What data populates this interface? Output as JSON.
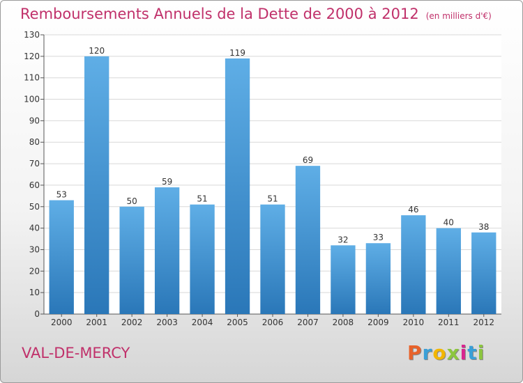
{
  "header": {
    "title": "Remboursements Annuels de la Dette de 2000 à 2012",
    "unit": "(en milliers d'€)"
  },
  "footer": {
    "city": "VAL-DE-MERCY",
    "logo": "Proxiti",
    "logo_colors": [
      "#e8622a",
      "#3aa0d8",
      "#f2b600",
      "#8cc63f",
      "#d9258f",
      "#3aa0d8",
      "#8cc63f"
    ]
  },
  "colors": {
    "bar_top": "#5faee6",
    "bar_bottom": "#2a77b8",
    "title": "#c0306a",
    "grid": "#d8d8d8"
  },
  "chart_data": {
    "type": "bar",
    "categories": [
      "2000",
      "2001",
      "2002",
      "2003",
      "2004",
      "2005",
      "2006",
      "2007",
      "2008",
      "2009",
      "2010",
      "2011",
      "2012"
    ],
    "values": [
      53,
      120,
      50,
      59,
      51,
      119,
      51,
      69,
      32,
      33,
      46,
      40,
      38
    ],
    "ylim": [
      0,
      130
    ],
    "yticks": [
      0,
      10,
      20,
      30,
      40,
      50,
      60,
      70,
      80,
      90,
      100,
      110,
      120,
      130
    ],
    "grid": true,
    "data_labels": true
  }
}
